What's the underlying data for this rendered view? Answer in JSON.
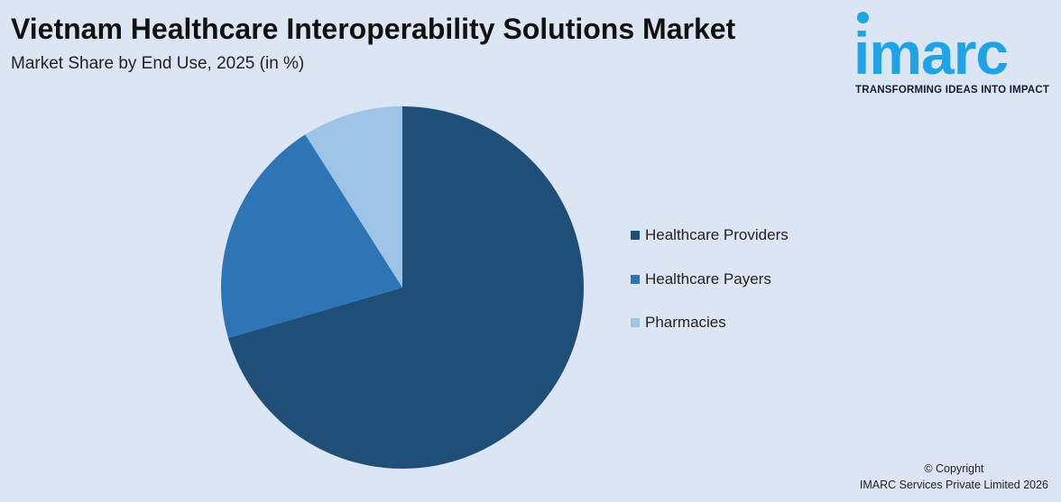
{
  "header": {
    "title": "Vietnam Healthcare Interoperability Solutions Market",
    "subtitle": "Market Share by End Use, 2025 (in %)"
  },
  "logo": {
    "text": "imarc",
    "tagline": "TRANSFORMING IDEAS INTO IMPACT",
    "color": "#1ea3e6"
  },
  "chart_data": {
    "type": "pie",
    "categories": [
      "Healthcare Providers",
      "Healthcare Payers",
      "Pharmacies"
    ],
    "values": [
      70.5,
      20.5,
      9.0
    ],
    "colors": [
      "#1f4e79",
      "#2e75b6",
      "#9dc3e6"
    ],
    "start_angle_deg": 0,
    "direction": "clockwise",
    "legend_position": "right"
  },
  "footer": {
    "copyright_line1": "© Copyright",
    "copyright_line2": "IMARC Services Private Limited 2026"
  }
}
